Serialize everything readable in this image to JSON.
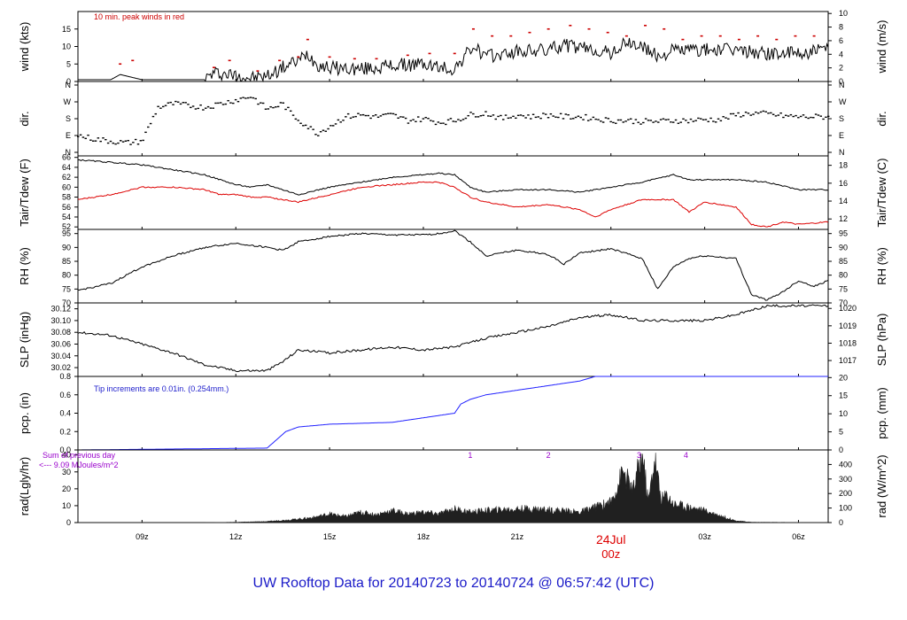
{
  "footer": "UW Rooftop Data for 20140723  to  20140724 @ 06:57:42  (UTC)",
  "chart_data": {
    "type": "line",
    "x_ticks": [
      "09z",
      "12z",
      "15z",
      "18z",
      "21z",
      "03z",
      "06z"
    ],
    "x_date_label": "24Jul",
    "x_midnight_label": "00z",
    "xlim_hours": [
      6.95,
      30.95
    ],
    "panels": [
      {
        "id": "wind",
        "left_label": "wind (kts)",
        "right_label": "wind (m/s)",
        "left_ticks": [
          0,
          5,
          10,
          15
        ],
        "right_ticks": [
          0,
          2,
          4,
          6,
          8,
          10
        ],
        "ylim": [
          0,
          20
        ],
        "annotation": "10 min. peak winds in red",
        "annotation_color": "#cc0000",
        "series": [
          {
            "color": "#000000",
            "hours": [
              6.95,
              8,
              8.3,
              9,
              10,
              11,
              11.3,
              11.8,
              12.5,
              13,
              13.5,
              14,
              14.3,
              14.6,
              15,
              16,
              17,
              18,
              18.5,
              19,
              19.3,
              19.6,
              20,
              21,
              22,
              22.5,
              23,
              23.5,
              24,
              24.5,
              25,
              25.5,
              26,
              27,
              28,
              29,
              30,
              30.95
            ],
            "values": [
              0.5,
              0.5,
              2,
              0.5,
              0.5,
              0.5,
              2.5,
              2,
              1,
              1.5,
              4,
              6,
              8,
              5,
              4,
              3.5,
              4.5,
              5,
              4,
              3.5,
              7,
              10,
              7,
              8.5,
              9,
              10.5,
              9.5,
              9,
              8,
              11,
              10,
              7,
              9,
              9,
              9,
              8,
              8,
              9
            ]
          },
          {
            "name": "10 min. peak winds in red",
            "color": "#cc0000",
            "hours": [
              8.3,
              8.7,
              11.3,
              11.8,
              12.7,
              13.4,
              14.0,
              14.3,
              15.0,
              15.8,
              16.5,
              17.5,
              18.2,
              19.0,
              19.6,
              20.2,
              20.8,
              21.4,
              22.0,
              22.7,
              23.3,
              23.9,
              24.5,
              25.1,
              25.7,
              26.3,
              26.9,
              27.5,
              28.1,
              28.7,
              29.3,
              29.9,
              30.5
            ],
            "values": [
              5,
              6,
              4,
              6,
              3,
              6,
              7,
              12,
              7,
              6.5,
              6.5,
              7.5,
              8,
              8,
              15,
              13,
              13,
              14,
              15,
              16,
              15,
              14,
              13,
              16,
              15,
              12,
              13,
              13,
              12,
              13,
              12,
              13,
              13
            ]
          }
        ]
      },
      {
        "id": "dir",
        "left_label": "dir.",
        "right_label": "dir.",
        "left_ticks": [
          "N",
          "E",
          "S",
          "W",
          "N"
        ],
        "right_ticks": [
          "N",
          "E",
          "S",
          "W",
          "N"
        ],
        "ylim": [
          0,
          360
        ],
        "series": [
          {
            "color": "#000000",
            "style": "points",
            "hours": [
              6.95,
              7.5,
              8.0,
              8.5,
              9.0,
              9.5,
              10.0,
              10.5,
              11.0,
              11.5,
              12.0,
              12.5,
              13.0,
              13.5,
              13.8,
              14.2,
              14.6,
              15.0,
              15.5,
              16.0,
              16.5,
              17.0,
              17.5,
              18.0,
              18.5,
              19.0,
              19.5,
              20.0,
              20.5,
              21.0,
              21.5,
              22.0,
              22.5,
              23.0,
              23.5,
              24.0,
              24.5,
              25.0,
              25.5,
              26.0,
              26.5,
              27.0,
              27.5,
              28.0,
              28.5,
              29.0,
              29.5,
              30.0,
              30.5,
              30.95
            ],
            "values": [
              90,
              70,
              60,
              50,
              60,
              240,
              260,
              250,
              240,
              260,
              280,
              300,
              230,
              260,
              200,
              150,
              100,
              140,
              190,
              200,
              190,
              200,
              170,
              180,
              160,
              170,
              200,
              210,
              180,
              200,
              190,
              200,
              190,
              190,
              180,
              170,
              170,
              165,
              165,
              170,
              170,
              175,
              175,
              200,
              210,
              205,
              195,
              190,
              190,
              190
            ]
          }
        ]
      },
      {
        "id": "temp",
        "left_label": "Tair/Tdew (F)",
        "right_label": "Tair/Tdew (C)",
        "left_ticks": [
          52,
          54,
          56,
          58,
          60,
          62,
          64,
          66
        ],
        "right_ticks": [
          12,
          14,
          16,
          18
        ],
        "ylim": [
          51.5,
          66.3
        ],
        "series": [
          {
            "name": "Tair",
            "color": "#000000",
            "hours": [
              6.95,
              8,
              9,
              10,
              11,
              11.5,
              12,
              12.5,
              13,
              13.5,
              14,
              15,
              16,
              17,
              18,
              18.5,
              19,
              19.5,
              20,
              21,
              22,
              23,
              24,
              25,
              26,
              26.5,
              27,
              28,
              29,
              30,
              30.95
            ],
            "values": [
              65.5,
              65,
              64.5,
              63.5,
              62.5,
              61.5,
              60.5,
              60,
              60.5,
              59.5,
              58.5,
              60,
              61,
              62,
              62.5,
              62.8,
              62.5,
              60,
              59,
              59.5,
              59.5,
              59,
              60,
              61,
              62.5,
              61.5,
              61.5,
              61.5,
              61,
              59.5,
              59.5
            ]
          },
          {
            "name": "Tdew",
            "color": "#dd0000",
            "hours": [
              6.95,
              8,
              9,
              10,
              11,
              11.5,
              12,
              12.5,
              13,
              13.5,
              14,
              15,
              16,
              17,
              18,
              18.5,
              19,
              19.5,
              20,
              21,
              22,
              23,
              23.5,
              24,
              25,
              26,
              26.5,
              27,
              28,
              28.5,
              29,
              29.5,
              30,
              30.95
            ],
            "values": [
              57.5,
              58.5,
              60,
              60,
              59.5,
              58.5,
              58.5,
              58,
              58,
              57.5,
              57,
              58.5,
              60,
              60.5,
              61,
              61,
              60,
              58,
              57,
              56,
              56.5,
              55.5,
              54,
              55.5,
              57.5,
              57.5,
              55,
              57,
              56,
              52.5,
              52,
              53,
              52.5,
              53
            ]
          }
        ]
      },
      {
        "id": "rh",
        "left_label": "RH (%)",
        "right_label": "RH (%)",
        "left_ticks": [
          70,
          75,
          80,
          85,
          90,
          95
        ],
        "right_ticks": [
          70,
          75,
          80,
          85,
          90,
          95
        ],
        "ylim": [
          70,
          96.5
        ],
        "series": [
          {
            "color": "#000000",
            "hours": [
              6.95,
              8,
              9,
              10,
              11,
              12,
              13,
              13.5,
              14,
              15,
              16,
              17,
              18,
              18.5,
              19,
              19.5,
              20,
              21,
              22,
              22.5,
              23,
              24,
              25,
              25.5,
              26,
              26.5,
              27,
              28,
              28.5,
              29,
              29.5,
              30,
              30.5,
              30.95
            ],
            "values": [
              74.5,
              77,
              83,
              87,
              90,
              91.5,
              90,
              89,
              92,
              94,
              95,
              94.5,
              94.5,
              95,
              96,
              92,
              87,
              89,
              87.5,
              84,
              88,
              89.5,
              86,
              75,
              83,
              86,
              87,
              86,
              73,
              71,
              74,
              78,
              76,
              78
            ]
          }
        ]
      },
      {
        "id": "slp",
        "left_label": "SLP (inHg)",
        "right_label": "SLP (hPa)",
        "left_ticks": [
          30.02,
          30.04,
          30.06,
          30.08,
          30.1,
          30.12
        ],
        "right_ticks": [
          1017,
          1018,
          1019,
          1020
        ],
        "ylim": [
          30.005,
          30.13
        ],
        "series": [
          {
            "color": "#000000",
            "hours": [
              6.95,
              8,
              9,
              10,
              11,
              12,
              13,
              13.5,
              14,
              15,
              16,
              17,
              18,
              19,
              20,
              21,
              22,
              23,
              24,
              25,
              26,
              27,
              28,
              29,
              30,
              30.95
            ],
            "values": [
              30.08,
              30.075,
              30.06,
              30.045,
              30.025,
              30.015,
              30.015,
              30.03,
              30.05,
              30.045,
              30.05,
              30.055,
              30.05,
              30.055,
              30.07,
              30.08,
              30.09,
              30.105,
              30.11,
              30.1,
              30.1,
              30.1,
              30.11,
              30.125,
              30.125,
              30.125
            ]
          }
        ]
      },
      {
        "id": "pcp",
        "left_label": "pcp. (in)",
        "right_label": "pcp. (mm)",
        "left_ticks": [
          0.0,
          0.2,
          0.4,
          0.6,
          0.8
        ],
        "right_ticks": [
          0,
          5,
          10,
          15,
          20
        ],
        "ylim": [
          0,
          0.8
        ],
        "annotation": "Tip increments are 0.01in. (0.254mm.)",
        "annotation_color": "#2020cc",
        "series": [
          {
            "color": "#2020ff",
            "hours": [
              6.95,
              10,
              13,
              13.6,
              14,
              15,
              17,
              18,
              19,
              19.2,
              19.5,
              20,
              21,
              22,
              23,
              23.5,
              24,
              30.95
            ],
            "values": [
              0,
              0.01,
              0.02,
              0.2,
              0.25,
              0.28,
              0.3,
              0.35,
              0.4,
              0.5,
              0.55,
              0.6,
              0.65,
              0.7,
              0.75,
              0.8,
              0.8,
              0.8
            ]
          }
        ]
      },
      {
        "id": "rad",
        "left_label": "rad(Lgly/hr)",
        "right_label": "rad (W/m^2)",
        "left_ticks": [
          0,
          10,
          20,
          30,
          40
        ],
        "right_ticks": [
          0,
          100,
          200,
          300,
          400
        ],
        "ylim": [
          0,
          43
        ],
        "annotation": "Sum of previous day",
        "annotation_2": "<--- 9.09 MJoules/m^2",
        "annotation_color": "#9900cc",
        "top_markers": [
          {
            "label": "1",
            "hour": 19.5
          },
          {
            "label": "2",
            "hour": 22.0
          },
          {
            "label": "3",
            "hour": 24.9
          },
          {
            "label": "4",
            "hour": 26.4
          }
        ],
        "series": [
          {
            "color": "#202020",
            "style": "area",
            "hours": [
              6.95,
              11,
              12,
              13,
              14,
              14.5,
              15,
              15.5,
              16,
              16.5,
              17,
              17.5,
              18,
              18.5,
              19,
              19.5,
              20,
              20.5,
              21,
              21.5,
              22,
              22.5,
              23,
              23.5,
              24,
              24.4,
              24.7,
              25.0,
              25.2,
              25.4,
              25.6,
              25.8,
              26,
              26.5,
              27,
              27.5,
              28,
              28.5,
              30.95
            ],
            "values": [
              0,
              0,
              0.2,
              0.6,
              2,
              3,
              5,
              3.5,
              6,
              4.5,
              7,
              5,
              6,
              5,
              8,
              6,
              7,
              7.5,
              8,
              8,
              7.5,
              7,
              6,
              9,
              12,
              30,
              18,
              40,
              12,
              38,
              14,
              16,
              11,
              9,
              7,
              4,
              1,
              0.2,
              0
            ]
          }
        ]
      }
    ]
  }
}
